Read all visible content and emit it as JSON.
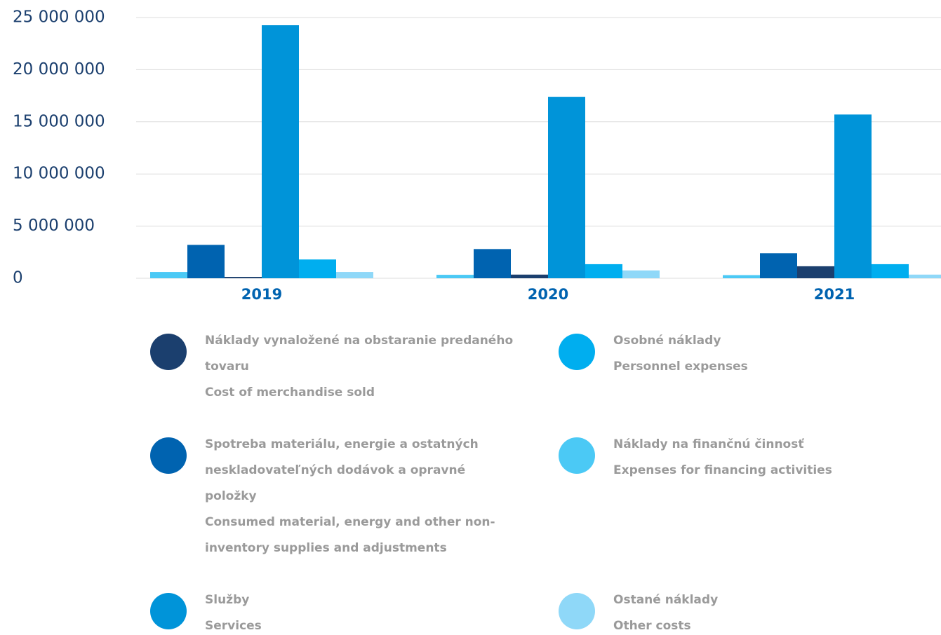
{
  "chart_data": {
    "type": "bar",
    "categories": [
      "2019",
      "2020",
      "2021"
    ],
    "series": [
      {
        "name": "Náklady na finančnú činnosť",
        "name_en": "Expenses for financing activities",
        "color": "#4bc9f5",
        "values": [
          600000,
          330000,
          300000
        ]
      },
      {
        "name": "Spotreba materiálu, energie a ostatných neskladovateľných dodávok a opravné položky",
        "name_en": "Consumed material, energy and other non-inventory supplies and adjustments",
        "color": "#0063b0",
        "values": [
          3200000,
          2800000,
          2400000
        ]
      },
      {
        "name": "Náklady vynaložené na obstaranie predaného tovaru",
        "name_en": "Cost of merchandise sold",
        "color": "#1b3f6e",
        "values": [
          130000,
          350000,
          1150000
        ]
      },
      {
        "name": "Služby",
        "name_en": "Services",
        "color": "#0094d9",
        "values": [
          24260000,
          17400000,
          15700000
        ]
      },
      {
        "name": "Osobné náklady",
        "name_en": "Personnel expenses",
        "color": "#00aeef",
        "values": [
          1800000,
          1350000,
          1350000
        ]
      },
      {
        "name": "Ostané náklady",
        "name_en": "Other costs",
        "color": "#8fd8f8",
        "values": [
          600000,
          750000,
          350000
        ]
      }
    ],
    "ylim": [
      0,
      25000000
    ],
    "yticks": [
      {
        "value": 0,
        "label": "0"
      },
      {
        "value": 5000000,
        "label": "5 000 000"
      },
      {
        "value": 10000000,
        "label": "10 000 000"
      },
      {
        "value": 15000000,
        "label": "15 000 000"
      },
      {
        "value": 20000000,
        "label": "20 000 000"
      },
      {
        "value": 25000000,
        "label": "25 000 000"
      }
    ],
    "grid": true
  }
}
